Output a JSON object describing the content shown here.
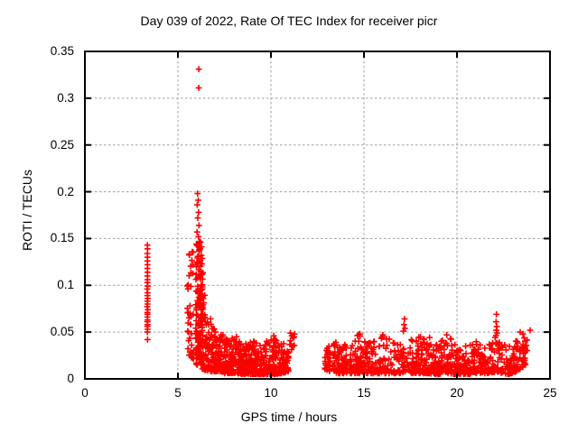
{
  "colors": {
    "marker": "#ff0000",
    "grid": "#9e9e9e",
    "axis": "#000000",
    "background": "#ffffff",
    "text": "#000000"
  },
  "chart_data": {
    "type": "scatter",
    "title": "Day 039 of 2022, Rate Of TEC Index for receiver picr",
    "xlabel": "GPS time / hours",
    "ylabel": "ROTI / TECUs",
    "xlim": [
      0,
      25
    ],
    "ylim": [
      0,
      0.35
    ],
    "xticks": [
      0,
      5,
      10,
      15,
      20,
      25
    ],
    "xtick_labels": [
      "0",
      "5",
      "10",
      "15",
      "20",
      "25"
    ],
    "yticks": [
      0,
      0.05,
      0.1,
      0.15,
      0.2,
      0.25,
      0.3,
      0.35
    ],
    "ytick_labels": [
      "0",
      "0.05",
      "0.1",
      "0.15",
      "0.2",
      "0.25",
      "0.3",
      "0.35"
    ],
    "grid": true,
    "legend": false,
    "marker": "plus",
    "n_points_estimate": 1700,
    "render_seed": 20220390,
    "explicit_points": [
      [
        3.36,
        0.143
      ],
      [
        3.37,
        0.139
      ],
      [
        3.36,
        0.134
      ],
      [
        3.37,
        0.13
      ],
      [
        3.36,
        0.126
      ],
      [
        3.37,
        0.122
      ],
      [
        3.36,
        0.118
      ],
      [
        3.37,
        0.114
      ],
      [
        3.36,
        0.11
      ],
      [
        3.37,
        0.106
      ],
      [
        3.36,
        0.103
      ],
      [
        3.38,
        0.099
      ],
      [
        3.35,
        0.096
      ],
      [
        3.37,
        0.092
      ],
      [
        3.36,
        0.089
      ],
      [
        3.38,
        0.086
      ],
      [
        3.36,
        0.083
      ],
      [
        3.37,
        0.08
      ],
      [
        3.35,
        0.077
      ],
      [
        3.38,
        0.074
      ],
      [
        3.36,
        0.071
      ],
      [
        3.37,
        0.069
      ],
      [
        3.36,
        0.066
      ],
      [
        3.37,
        0.063
      ],
      [
        3.36,
        0.061
      ],
      [
        3.37,
        0.058
      ],
      [
        3.36,
        0.056
      ],
      [
        3.37,
        0.053
      ],
      [
        3.36,
        0.05
      ],
      [
        3.37,
        0.042
      ],
      [
        6.12,
        0.331
      ],
      [
        6.12,
        0.311
      ],
      [
        6.06,
        0.198
      ],
      [
        6.09,
        0.191
      ],
      [
        6.04,
        0.186
      ],
      [
        6.11,
        0.178
      ],
      [
        6.07,
        0.172
      ],
      [
        6.13,
        0.164
      ],
      [
        6.03,
        0.157
      ],
      [
        6.1,
        0.152
      ],
      [
        6.16,
        0.147
      ],
      [
        6.21,
        0.146
      ],
      [
        5.99,
        0.144
      ],
      [
        6.44,
        0.066
      ],
      [
        6.48,
        0.061
      ],
      [
        6.52,
        0.058
      ],
      [
        6.95,
        0.053
      ],
      [
        7.02,
        0.05
      ],
      [
        7.42,
        0.047
      ],
      [
        8.15,
        0.045
      ],
      [
        10.15,
        0.046
      ],
      [
        11.05,
        0.049
      ],
      [
        11.12,
        0.046
      ],
      [
        11.2,
        0.044
      ],
      [
        11.27,
        0.048
      ],
      [
        14.78,
        0.048
      ],
      [
        16.02,
        0.047
      ],
      [
        17.18,
        0.064
      ],
      [
        17.15,
        0.058
      ],
      [
        17.21,
        0.054
      ],
      [
        17.12,
        0.051
      ],
      [
        19.2,
        0.008
      ],
      [
        19.45,
        0.047
      ],
      [
        22.12,
        0.069
      ],
      [
        22.1,
        0.061
      ],
      [
        22.14,
        0.056
      ],
      [
        22.11,
        0.052
      ],
      [
        22.16,
        0.049
      ],
      [
        23.4,
        0.05
      ],
      [
        23.55,
        0.048
      ],
      [
        23.93,
        0.052
      ]
    ],
    "bands": [
      {
        "x0": 5.5,
        "x1": 5.85,
        "n": 42,
        "pow": 1.1,
        "profile": [
          [
            5.5,
            0.02,
            0.132
          ],
          [
            5.85,
            0.02,
            0.145
          ]
        ]
      },
      {
        "x0": 5.95,
        "x1": 6.35,
        "n": 135,
        "pow": 1.25,
        "profile": [
          [
            5.95,
            0.015,
            0.105
          ],
          [
            6.02,
            0.015,
            0.146
          ],
          [
            6.25,
            0.015,
            0.146
          ],
          [
            6.35,
            0.012,
            0.118
          ]
        ]
      },
      {
        "x0": 6.3,
        "x1": 7.65,
        "n": 175,
        "pow": 2.0,
        "profile": [
          [
            6.3,
            0.01,
            0.112
          ],
          [
            6.55,
            0.009,
            0.078
          ],
          [
            6.8,
            0.008,
            0.062
          ],
          [
            7.1,
            0.008,
            0.052
          ],
          [
            7.65,
            0.007,
            0.047
          ]
        ]
      },
      {
        "x0": 7.5,
        "x1": 10.95,
        "n": 430,
        "pow": 2.1,
        "profile": [
          [
            7.5,
            0.006,
            0.044
          ],
          [
            8.15,
            0.006,
            0.046
          ],
          [
            8.5,
            0.005,
            0.036
          ],
          [
            9.0,
            0.005,
            0.041
          ],
          [
            9.55,
            0.005,
            0.038
          ],
          [
            10.15,
            0.005,
            0.046
          ],
          [
            10.55,
            0.006,
            0.04
          ],
          [
            10.95,
            0.008,
            0.034
          ]
        ]
      },
      {
        "x0": 11.0,
        "x1": 11.3,
        "n": 8,
        "pow": 1.0,
        "profile": [
          [
            11.0,
            0.022,
            0.05
          ],
          [
            11.3,
            0.03,
            0.048
          ]
        ]
      },
      {
        "x0": 12.9,
        "x1": 23.78,
        "n": 850,
        "pow": 2.0,
        "profile": [
          [
            12.9,
            0.01,
            0.032
          ],
          [
            13.2,
            0.008,
            0.038
          ],
          [
            13.5,
            0.006,
            0.041
          ],
          [
            14.0,
            0.006,
            0.039
          ],
          [
            14.5,
            0.006,
            0.045
          ],
          [
            14.8,
            0.006,
            0.049
          ],
          [
            15.2,
            0.006,
            0.043
          ],
          [
            15.7,
            0.006,
            0.039
          ],
          [
            16.0,
            0.006,
            0.047
          ],
          [
            16.5,
            0.006,
            0.041
          ],
          [
            17.0,
            0.006,
            0.046
          ],
          [
            17.3,
            0.008,
            0.052
          ],
          [
            17.6,
            0.006,
            0.043
          ],
          [
            18.05,
            0.006,
            0.046
          ],
          [
            18.4,
            0.006,
            0.046
          ],
          [
            19.0,
            0.005,
            0.039
          ],
          [
            19.45,
            0.006,
            0.048
          ],
          [
            19.8,
            0.005,
            0.041
          ],
          [
            20.2,
            0.005,
            0.039
          ],
          [
            20.6,
            0.005,
            0.036
          ],
          [
            21.0,
            0.006,
            0.041
          ],
          [
            21.4,
            0.006,
            0.043
          ],
          [
            21.8,
            0.006,
            0.041
          ],
          [
            22.1,
            0.008,
            0.05
          ],
          [
            22.45,
            0.006,
            0.039
          ],
          [
            22.8,
            0.005,
            0.035
          ],
          [
            23.2,
            0.008,
            0.043
          ],
          [
            23.5,
            0.012,
            0.049
          ],
          [
            23.78,
            0.015,
            0.046
          ]
        ]
      }
    ]
  }
}
